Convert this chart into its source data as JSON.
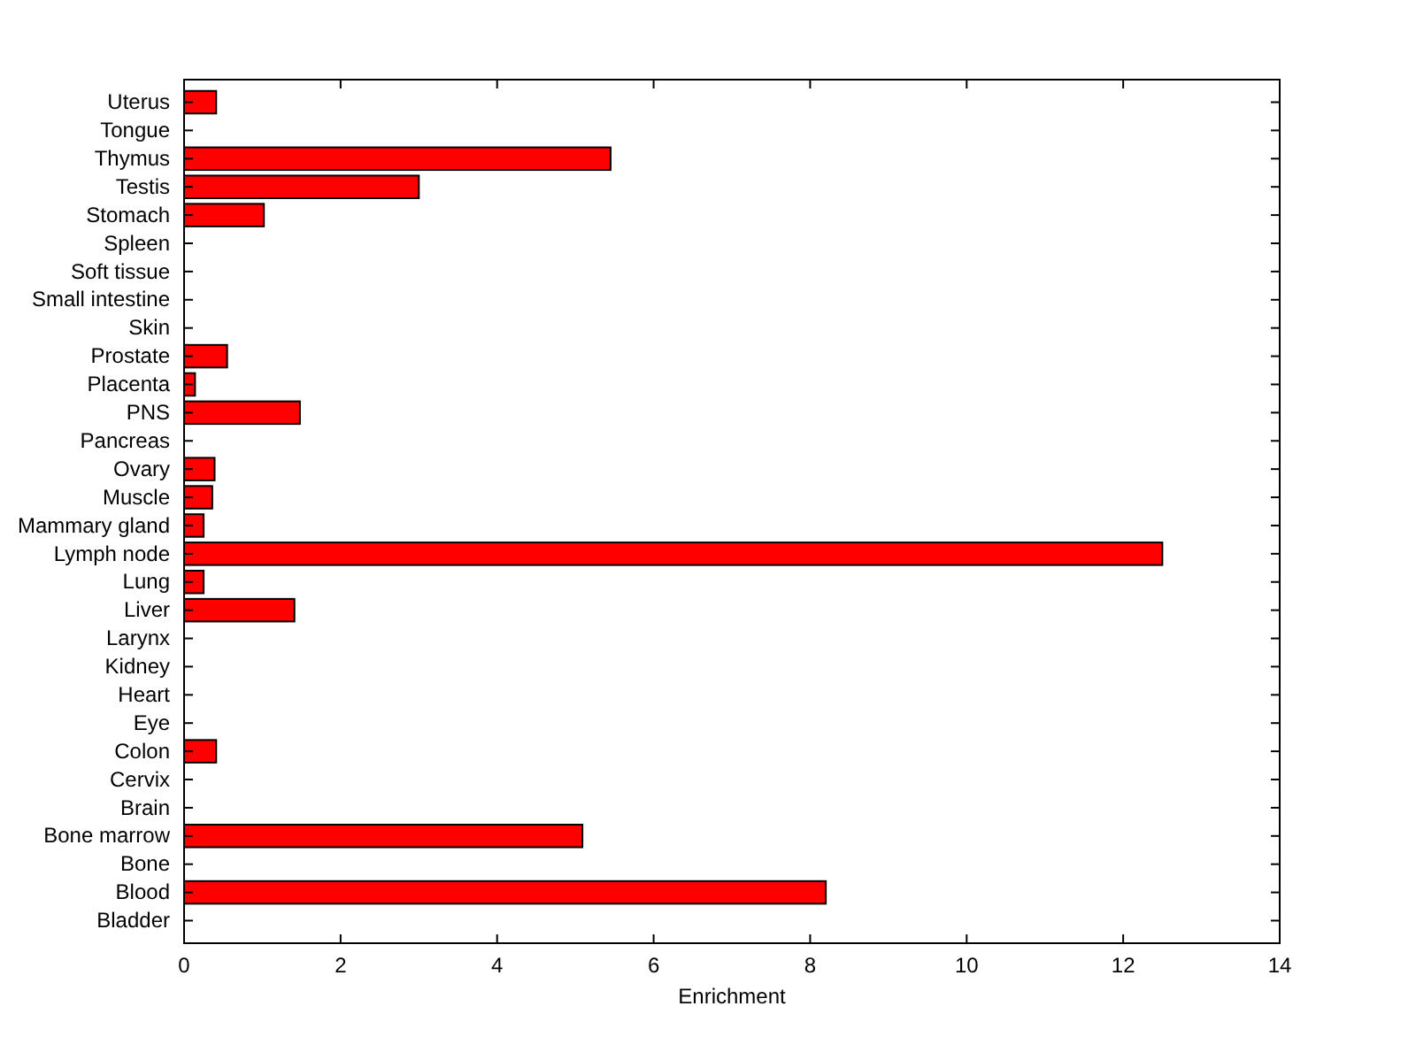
{
  "chart_data": {
    "type": "bar",
    "orientation": "horizontal",
    "xlabel": "Enrichment",
    "categories": [
      "Uterus",
      "Tongue",
      "Thymus",
      "Testis",
      "Stomach",
      "Spleen",
      "Soft tissue",
      "Small intestine",
      "Skin",
      "Prostate",
      "Placenta",
      "PNS",
      "Pancreas",
      "Ovary",
      "Muscle",
      "Mammary gland",
      "Lymph node",
      "Lung",
      "Liver",
      "Larynx",
      "Kidney",
      "Heart",
      "Eye",
      "Colon",
      "Cervix",
      "Brain",
      "Bone marrow",
      "Bone",
      "Blood",
      "Bladder"
    ],
    "values": [
      0.41,
      0,
      5.45,
      3.0,
      1.02,
      0,
      0,
      0,
      0,
      0.55,
      0.14,
      1.48,
      0,
      0.39,
      0.36,
      0.25,
      12.5,
      0.25,
      1.41,
      0,
      0,
      0,
      0,
      0.41,
      0,
      0,
      5.09,
      0,
      8.2,
      0
    ],
    "color": "#ff0000",
    "xlim": [
      0,
      14
    ],
    "xticks": [
      0,
      2,
      4,
      6,
      8,
      10,
      12,
      14
    ],
    "grid": false
  }
}
